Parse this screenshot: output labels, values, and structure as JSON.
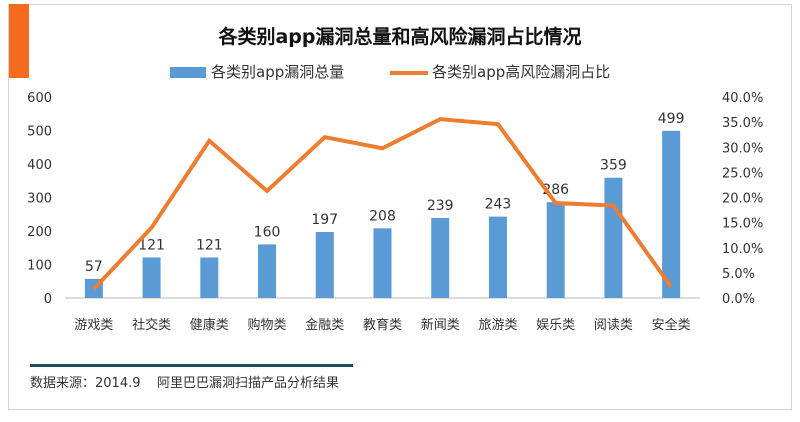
{
  "colors": {
    "bar": "#5b9bd5",
    "line": "#ed7d31",
    "accent": "#f26b1f",
    "source_rule": "#1f4e5a"
  },
  "chart_data": {
    "type": "bar+line",
    "title": "各类别app漏洞总量和高风险漏洞占比情况",
    "categories": [
      "游戏类",
      "社交类",
      "健康类",
      "购物类",
      "金融类",
      "教育类",
      "新闻类",
      "旅游类",
      "娱乐类",
      "阅读类",
      "安全类"
    ],
    "series": [
      {
        "name": "各类别app漏洞总量",
        "type": "bar",
        "axis": "left",
        "values": [
          57,
          121,
          121,
          160,
          197,
          208,
          239,
          243,
          286,
          359,
          499
        ]
      },
      {
        "name": "各类别app高风险漏洞占比",
        "type": "line",
        "axis": "right",
        "values": [
          1.8,
          14.0,
          31.3,
          21.3,
          32.0,
          29.8,
          35.6,
          34.6,
          18.9,
          18.4,
          2.2
        ]
      }
    ],
    "left_axis": {
      "ylim": [
        0,
        600
      ],
      "ticks": [
        "0",
        "100",
        "200",
        "300",
        "400",
        "500",
        "600"
      ]
    },
    "right_axis": {
      "ylim": [
        0,
        40
      ],
      "ticks": [
        "0.0%",
        "5.0%",
        "10.0%",
        "15.0%",
        "20.0%",
        "25.0%",
        "30.0%",
        "35.0%",
        "40.0%"
      ]
    },
    "data_labels": [
      "57",
      "121",
      "121",
      "160",
      "197",
      "208",
      "239",
      "243",
      "286",
      "359",
      "499"
    ],
    "legend": [
      "各类别app漏洞总量",
      "各类别app高风险漏洞占比"
    ],
    "legend_position": "top",
    "grid": false
  },
  "footer": {
    "source": "数据来源：2014.9    阿里巴巴漏洞扫描产品分析结果"
  }
}
